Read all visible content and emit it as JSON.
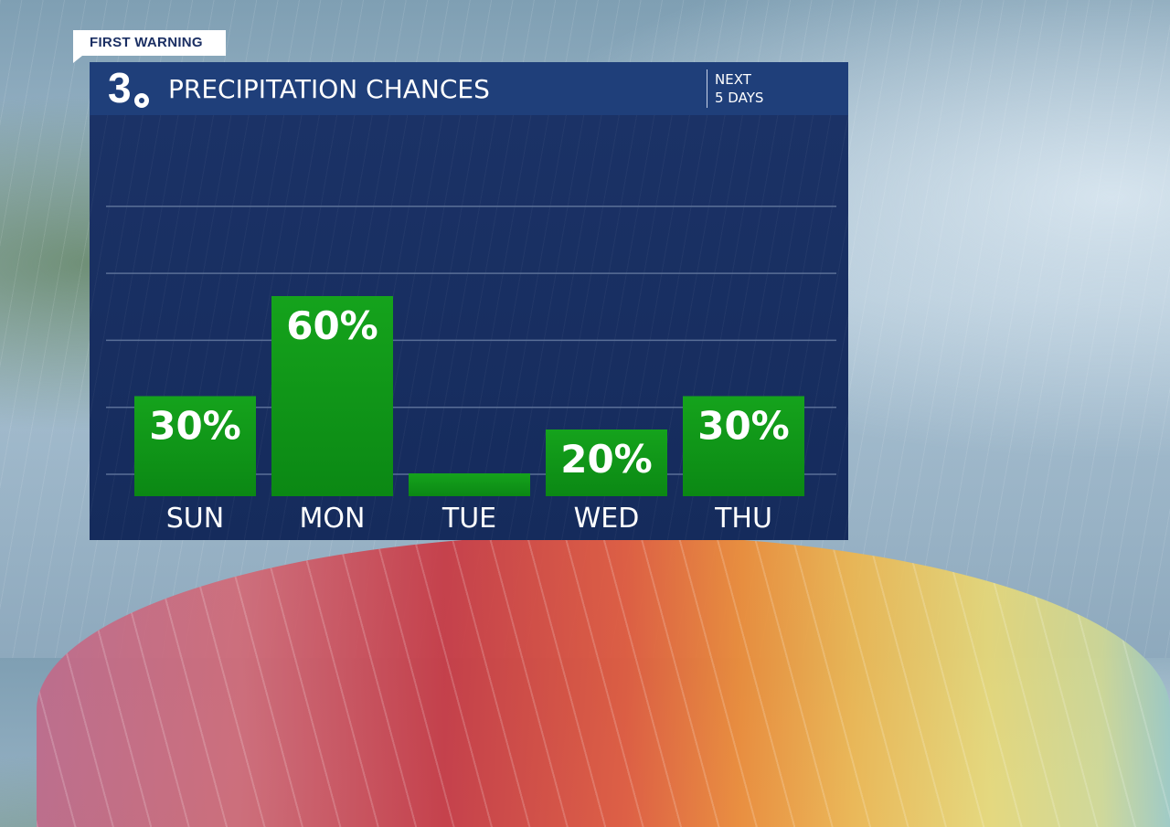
{
  "badge": {
    "label": "FIRST WARNING"
  },
  "header": {
    "logo_text": "3",
    "title": "PRECIPITATION CHANCES",
    "range_line1": "NEXT",
    "range_line2": "5 DAYS"
  },
  "colors": {
    "bar_top": "#15a31c",
    "bar_bottom": "#0b8814",
    "panel": "#1b3266",
    "header": "#1f3f7a"
  },
  "chart_data": {
    "type": "bar",
    "categories": [
      "SUN",
      "MON",
      "TUE",
      "WED",
      "THU"
    ],
    "values": [
      30,
      60,
      0,
      20,
      30
    ],
    "labels": [
      "30%",
      "60%",
      "",
      "20%",
      "30%"
    ],
    "title": "PRECIPITATION CHANCES",
    "xlabel": "",
    "ylabel": "",
    "ylim": [
      0,
      100
    ],
    "grid": true,
    "legend": "none"
  }
}
